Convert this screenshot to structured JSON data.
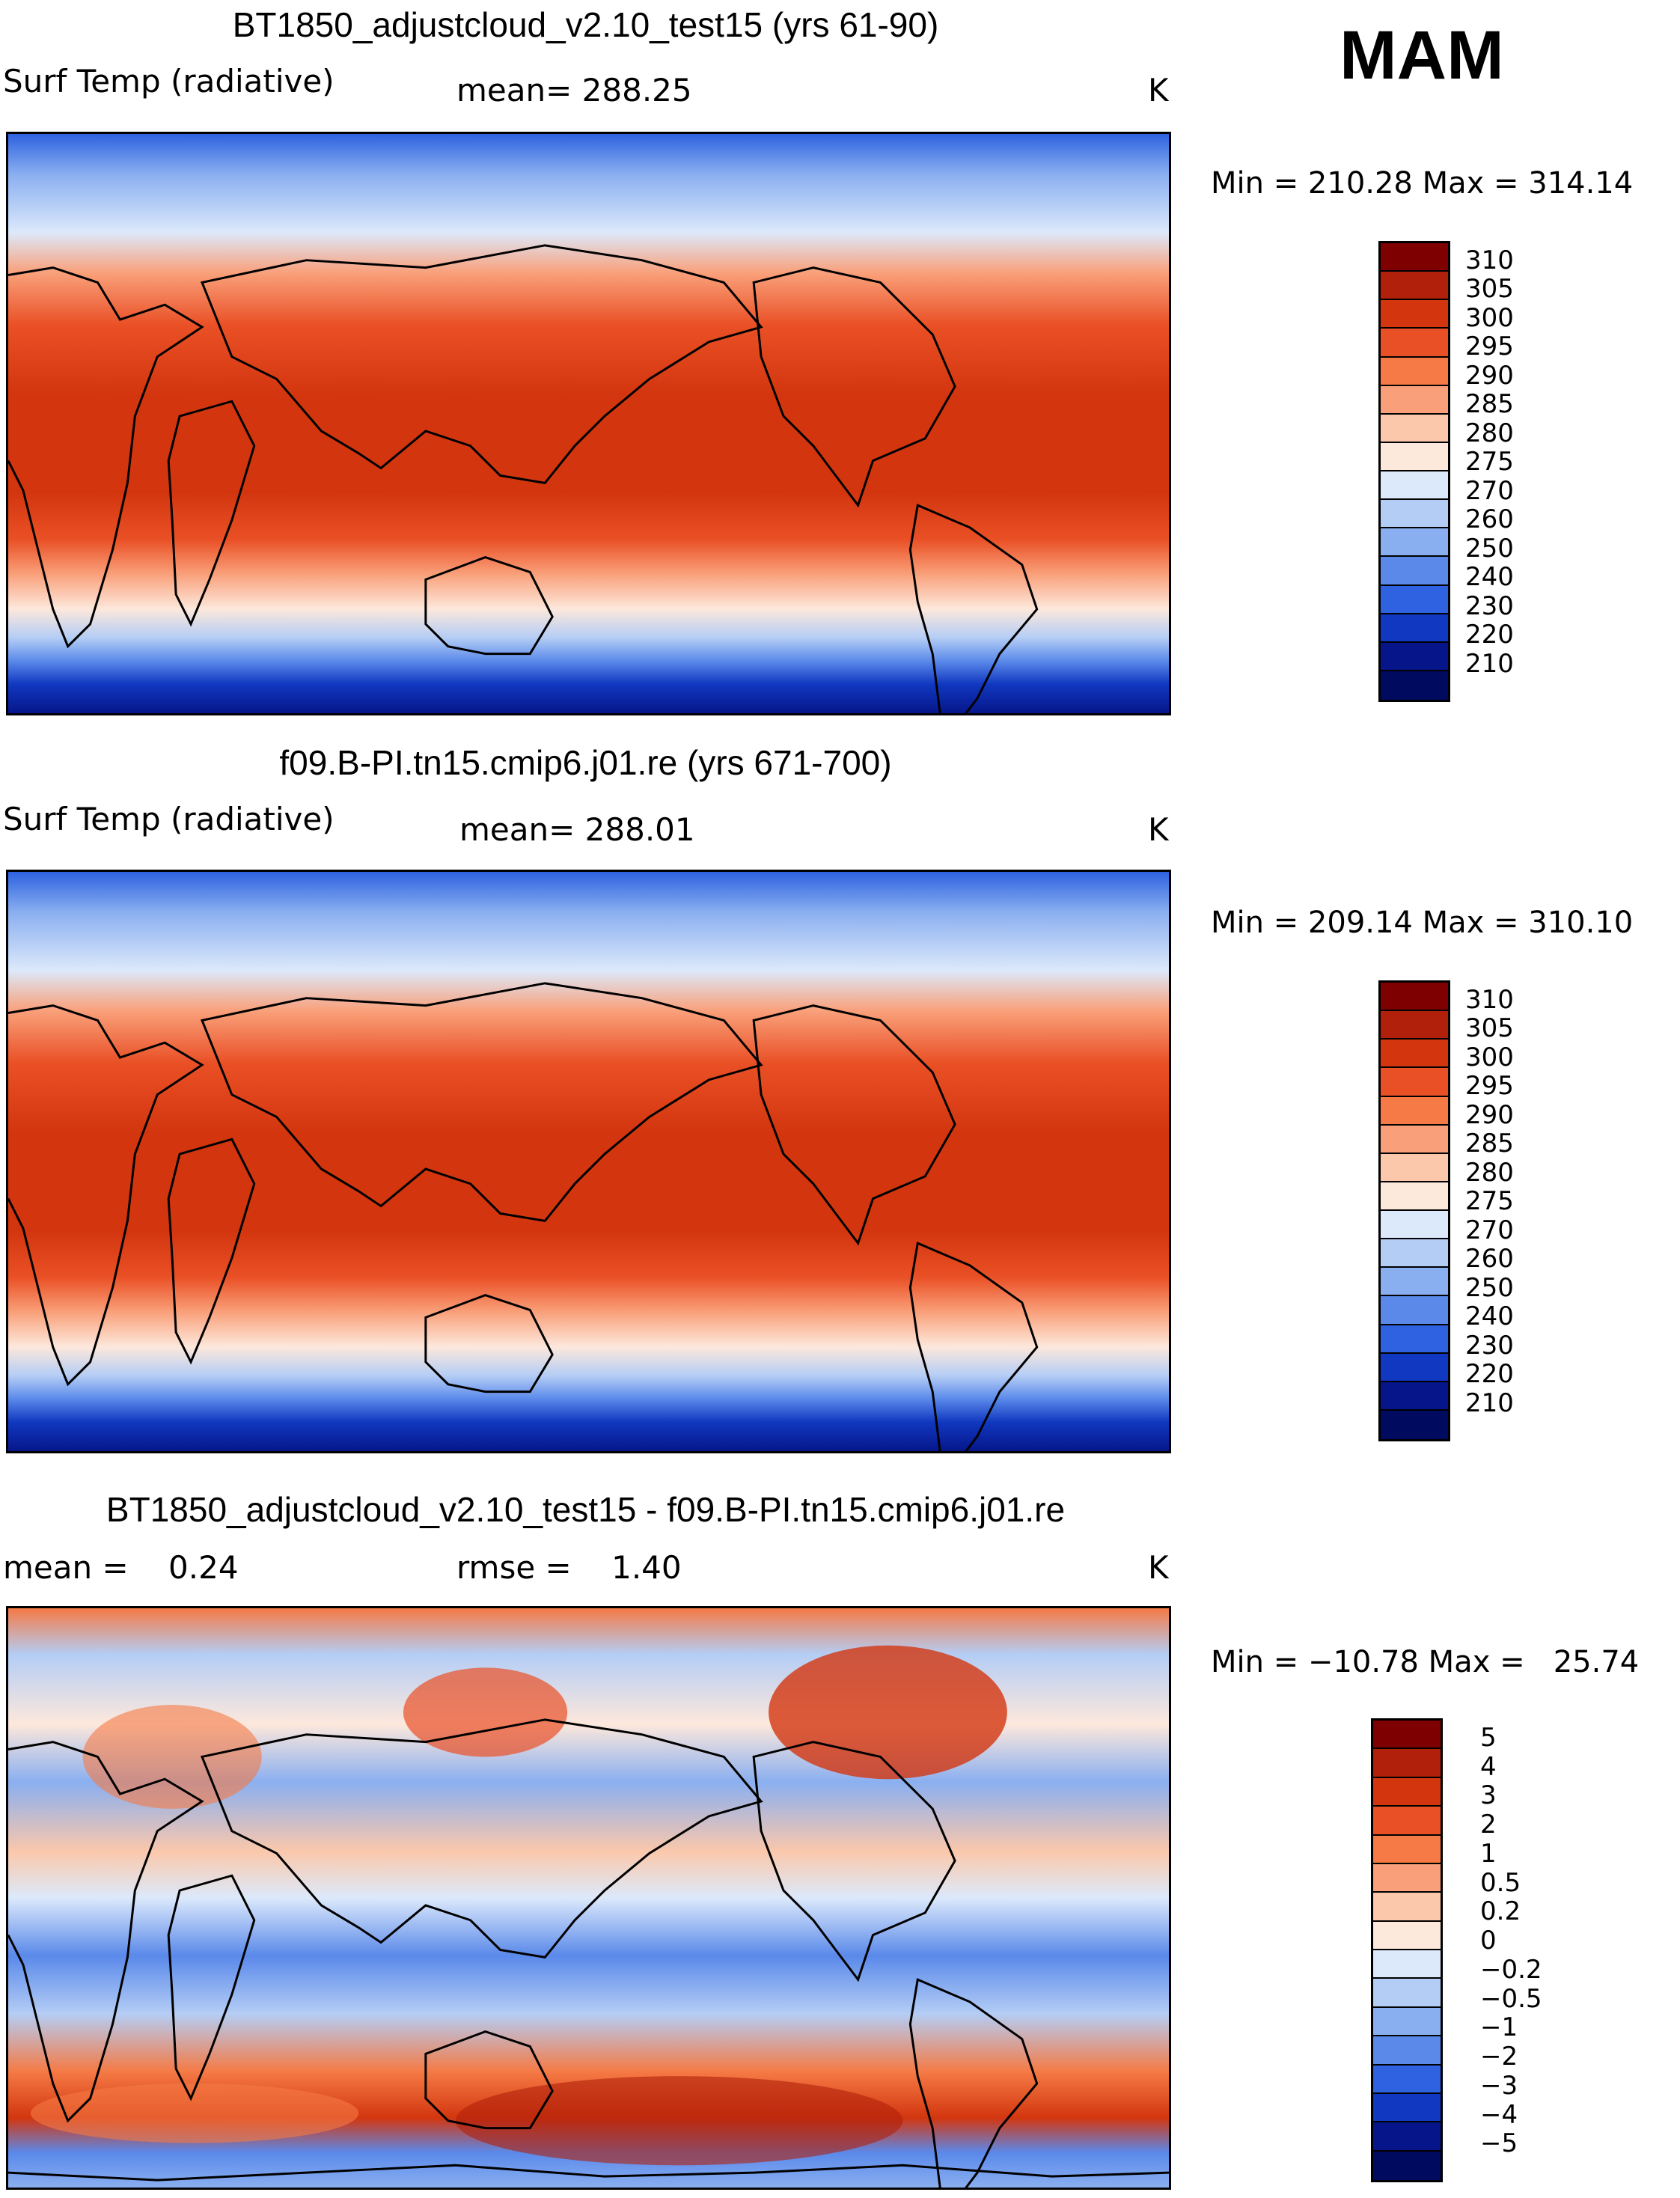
{
  "season": "MAM",
  "panels": [
    {
      "title": "BT1850_adjustcloud_v2.10_test15 (yrs 61-90)",
      "left_label": "Surf Temp (radiative)",
      "center_label": "mean= 288.25",
      "unit": "K",
      "minmax": "Min = 210.28 Max = 314.14",
      "kind": "abs"
    },
    {
      "title": "f09.B-PI.tn15.cmip6.j01.re (yrs 671-700)",
      "left_label": "Surf Temp (radiative)",
      "center_label": "mean= 288.01",
      "unit": "K",
      "minmax": "Min = 209.14 Max = 310.10",
      "kind": "abs"
    },
    {
      "title": "BT1850_adjustcloud_v2.10_test15 - f09.B-PI.tn15.cmip6.j01.re",
      "left_label": "mean =    0.24",
      "center_label": "rmse =    1.40",
      "unit": "K",
      "minmax": "Min = −10.78 Max =   25.74",
      "kind": "diff"
    }
  ],
  "colorbar_abs": {
    "labels": [
      "310",
      "305",
      "300",
      "295",
      "290",
      "285",
      "280",
      "275",
      "270",
      "260",
      "250",
      "240",
      "230",
      "220",
      "210"
    ],
    "colors": [
      "#7f0000",
      "#b0200a",
      "#d3360f",
      "#ea5026",
      "#f57a45",
      "#f9a07a",
      "#fbc8ab",
      "#fde8dc",
      "#dce9fb",
      "#b4cdf5",
      "#8aaff0",
      "#5a89ea",
      "#2e62e0",
      "#1038c0",
      "#06168a",
      "#000a5e"
    ]
  },
  "colorbar_diff": {
    "labels": [
      "5",
      "4",
      "3",
      "2",
      "1",
      "0.5",
      "0.2",
      "0",
      "−0.2",
      "−0.5",
      "−1",
      "−2",
      "−3",
      "−4",
      "−5"
    ],
    "colors": [
      "#7f0000",
      "#b0200a",
      "#d3360f",
      "#ea5026",
      "#f57a45",
      "#f9a07a",
      "#fbc8ab",
      "#fde8dc",
      "#dce9fb",
      "#b4cdf5",
      "#8aaff0",
      "#5a89ea",
      "#2e62e0",
      "#1038c0",
      "#06168a",
      "#000a5e"
    ]
  }
}
